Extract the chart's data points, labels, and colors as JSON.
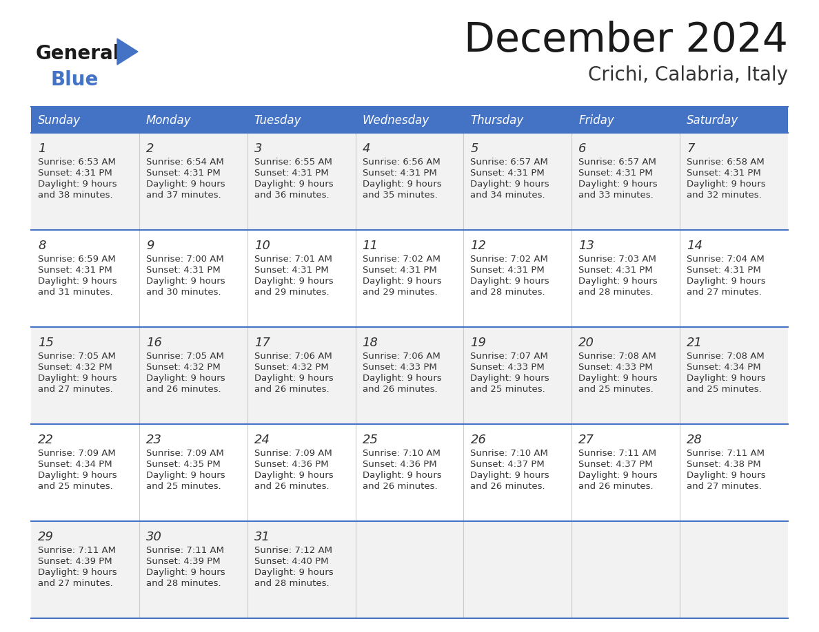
{
  "title": "December 2024",
  "subtitle": "Crichi, Calabria, Italy",
  "days_of_week": [
    "Sunday",
    "Monday",
    "Tuesday",
    "Wednesday",
    "Thursday",
    "Friday",
    "Saturday"
  ],
  "header_bg": "#4472C4",
  "header_text_color": "#FFFFFF",
  "row_bg_odd": "#F2F2F2",
  "row_bg_even": "#FFFFFF",
  "cell_text_color": "#333333",
  "day_num_color": "#333333",
  "border_color": "#4472C4",
  "grid_color": "#CCCCCC",
  "title_color": "#1a1a1a",
  "subtitle_color": "#333333",
  "weeks": [
    [
      {
        "day": 1,
        "sunrise": "6:53 AM",
        "sunset": "4:31 PM",
        "daylight_hours": 9,
        "daylight_minutes": 38
      },
      {
        "day": 2,
        "sunrise": "6:54 AM",
        "sunset": "4:31 PM",
        "daylight_hours": 9,
        "daylight_minutes": 37
      },
      {
        "day": 3,
        "sunrise": "6:55 AM",
        "sunset": "4:31 PM",
        "daylight_hours": 9,
        "daylight_minutes": 36
      },
      {
        "day": 4,
        "sunrise": "6:56 AM",
        "sunset": "4:31 PM",
        "daylight_hours": 9,
        "daylight_minutes": 35
      },
      {
        "day": 5,
        "sunrise": "6:57 AM",
        "sunset": "4:31 PM",
        "daylight_hours": 9,
        "daylight_minutes": 34
      },
      {
        "day": 6,
        "sunrise": "6:57 AM",
        "sunset": "4:31 PM",
        "daylight_hours": 9,
        "daylight_minutes": 33
      },
      {
        "day": 7,
        "sunrise": "6:58 AM",
        "sunset": "4:31 PM",
        "daylight_hours": 9,
        "daylight_minutes": 32
      }
    ],
    [
      {
        "day": 8,
        "sunrise": "6:59 AM",
        "sunset": "4:31 PM",
        "daylight_hours": 9,
        "daylight_minutes": 31
      },
      {
        "day": 9,
        "sunrise": "7:00 AM",
        "sunset": "4:31 PM",
        "daylight_hours": 9,
        "daylight_minutes": 30
      },
      {
        "day": 10,
        "sunrise": "7:01 AM",
        "sunset": "4:31 PM",
        "daylight_hours": 9,
        "daylight_minutes": 29
      },
      {
        "day": 11,
        "sunrise": "7:02 AM",
        "sunset": "4:31 PM",
        "daylight_hours": 9,
        "daylight_minutes": 29
      },
      {
        "day": 12,
        "sunrise": "7:02 AM",
        "sunset": "4:31 PM",
        "daylight_hours": 9,
        "daylight_minutes": 28
      },
      {
        "day": 13,
        "sunrise": "7:03 AM",
        "sunset": "4:31 PM",
        "daylight_hours": 9,
        "daylight_minutes": 28
      },
      {
        "day": 14,
        "sunrise": "7:04 AM",
        "sunset": "4:31 PM",
        "daylight_hours": 9,
        "daylight_minutes": 27
      }
    ],
    [
      {
        "day": 15,
        "sunrise": "7:05 AM",
        "sunset": "4:32 PM",
        "daylight_hours": 9,
        "daylight_minutes": 27
      },
      {
        "day": 16,
        "sunrise": "7:05 AM",
        "sunset": "4:32 PM",
        "daylight_hours": 9,
        "daylight_minutes": 26
      },
      {
        "day": 17,
        "sunrise": "7:06 AM",
        "sunset": "4:32 PM",
        "daylight_hours": 9,
        "daylight_minutes": 26
      },
      {
        "day": 18,
        "sunrise": "7:06 AM",
        "sunset": "4:33 PM",
        "daylight_hours": 9,
        "daylight_minutes": 26
      },
      {
        "day": 19,
        "sunrise": "7:07 AM",
        "sunset": "4:33 PM",
        "daylight_hours": 9,
        "daylight_minutes": 25
      },
      {
        "day": 20,
        "sunrise": "7:08 AM",
        "sunset": "4:33 PM",
        "daylight_hours": 9,
        "daylight_minutes": 25
      },
      {
        "day": 21,
        "sunrise": "7:08 AM",
        "sunset": "4:34 PM",
        "daylight_hours": 9,
        "daylight_minutes": 25
      }
    ],
    [
      {
        "day": 22,
        "sunrise": "7:09 AM",
        "sunset": "4:34 PM",
        "daylight_hours": 9,
        "daylight_minutes": 25
      },
      {
        "day": 23,
        "sunrise": "7:09 AM",
        "sunset": "4:35 PM",
        "daylight_hours": 9,
        "daylight_minutes": 25
      },
      {
        "day": 24,
        "sunrise": "7:09 AM",
        "sunset": "4:36 PM",
        "daylight_hours": 9,
        "daylight_minutes": 26
      },
      {
        "day": 25,
        "sunrise": "7:10 AM",
        "sunset": "4:36 PM",
        "daylight_hours": 9,
        "daylight_minutes": 26
      },
      {
        "day": 26,
        "sunrise": "7:10 AM",
        "sunset": "4:37 PM",
        "daylight_hours": 9,
        "daylight_minutes": 26
      },
      {
        "day": 27,
        "sunrise": "7:11 AM",
        "sunset": "4:37 PM",
        "daylight_hours": 9,
        "daylight_minutes": 26
      },
      {
        "day": 28,
        "sunrise": "7:11 AM",
        "sunset": "4:38 PM",
        "daylight_hours": 9,
        "daylight_minutes": 27
      }
    ],
    [
      {
        "day": 29,
        "sunrise": "7:11 AM",
        "sunset": "4:39 PM",
        "daylight_hours": 9,
        "daylight_minutes": 27
      },
      {
        "day": 30,
        "sunrise": "7:11 AM",
        "sunset": "4:39 PM",
        "daylight_hours": 9,
        "daylight_minutes": 28
      },
      {
        "day": 31,
        "sunrise": "7:12 AM",
        "sunset": "4:40 PM",
        "daylight_hours": 9,
        "daylight_minutes": 28
      },
      null,
      null,
      null,
      null
    ]
  ]
}
